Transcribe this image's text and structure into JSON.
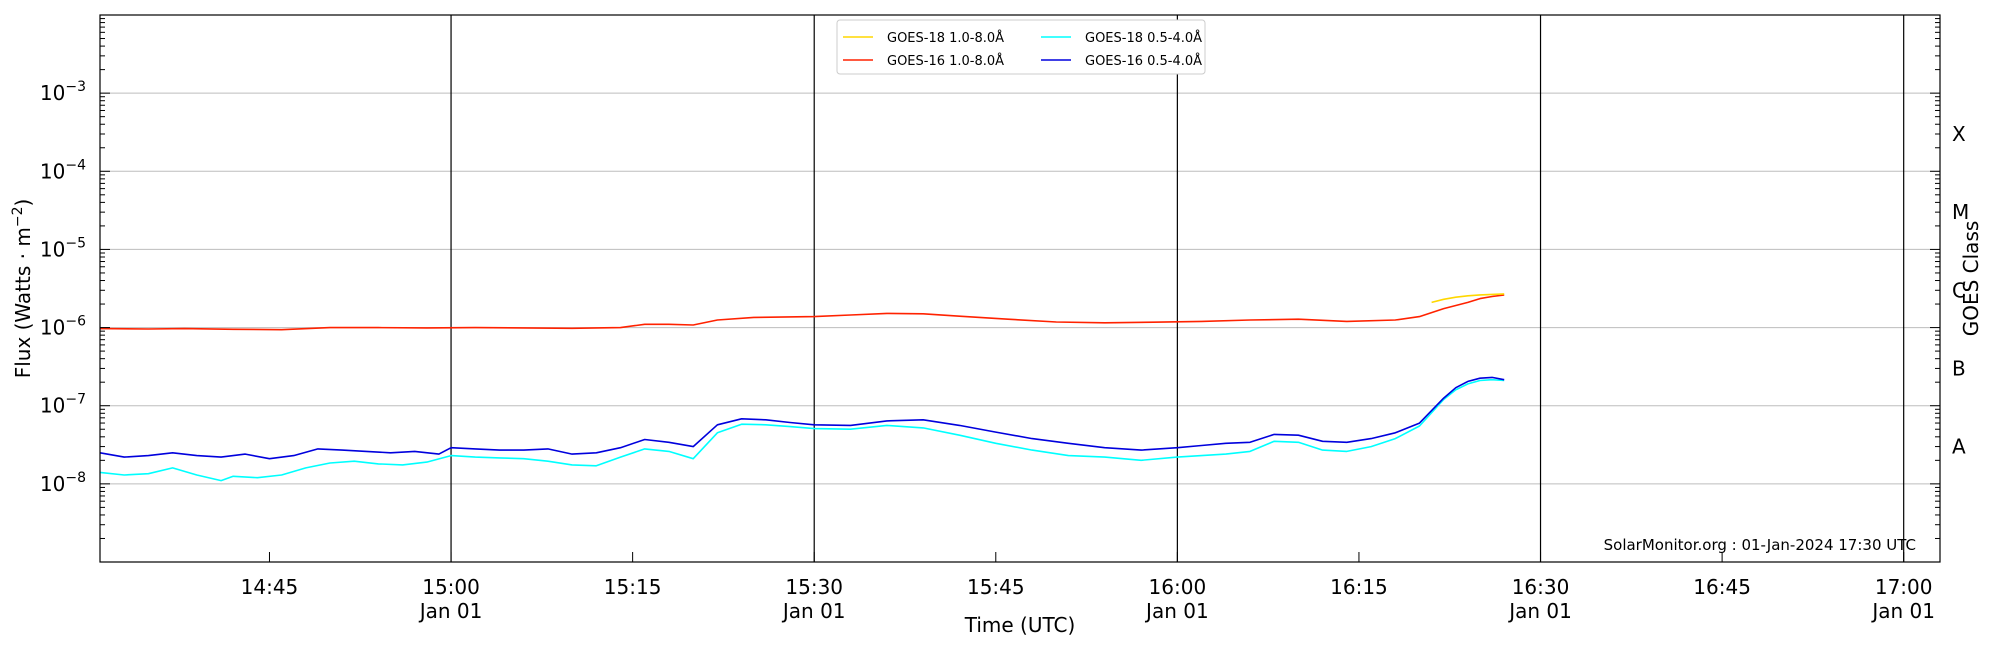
{
  "chart_data": {
    "type": "line",
    "title": "",
    "xlabel": "Time (UTC)",
    "ylabel": "Flux (Watts · m",
    "ylabel_exponent": "−2",
    "ylabel_close": ")",
    "y2label": "GOES Class",
    "y_scale": "log",
    "ylim": [
      1e-09,
      0.01
    ],
    "xlim": [
      "14:31",
      "17:03"
    ],
    "grid": "horizontal at decades",
    "legend_placement": "top-center",
    "y_ticks": [
      {
        "value": 1e-08,
        "base": "10",
        "exp": "−8"
      },
      {
        "value": 1e-07,
        "base": "10",
        "exp": "−7"
      },
      {
        "value": 1e-06,
        "base": "10",
        "exp": "−6"
      },
      {
        "value": 1e-05,
        "base": "10",
        "exp": "−5"
      },
      {
        "value": 0.0001,
        "base": "10",
        "exp": "−4"
      },
      {
        "value": 0.001,
        "base": "10",
        "exp": "−3"
      }
    ],
    "x_ticks": [
      {
        "time": "14:45",
        "label": "14:45",
        "sub": ""
      },
      {
        "time": "15:00",
        "label": "15:00",
        "sub": "Jan 01"
      },
      {
        "time": "15:15",
        "label": "15:15",
        "sub": ""
      },
      {
        "time": "15:30",
        "label": "15:30",
        "sub": "Jan 01"
      },
      {
        "time": "15:45",
        "label": "15:45",
        "sub": ""
      },
      {
        "time": "16:00",
        "label": "16:00",
        "sub": "Jan 01"
      },
      {
        "time": "16:15",
        "label": "16:15",
        "sub": ""
      },
      {
        "time": "16:30",
        "label": "16:30",
        "sub": "Jan 01"
      },
      {
        "time": "16:45",
        "label": "16:45",
        "sub": ""
      },
      {
        "time": "17:00",
        "label": "17:00",
        "sub": "Jan 01"
      }
    ],
    "vertical_lines": [
      "15:00",
      "15:30",
      "16:00",
      "16:30",
      "17:00"
    ],
    "goes_classes": [
      {
        "label": "A",
        "value": 3e-08
      },
      {
        "label": "B",
        "value": 3e-07
      },
      {
        "label": "C",
        "value": 3e-06
      },
      {
        "label": "M",
        "value": 3e-05
      },
      {
        "label": "X",
        "value": 0.0003
      }
    ],
    "legend": [
      {
        "name": "GOES-18 1.0-8.0Å",
        "color": "#ffd700"
      },
      {
        "name": "GOES-18 0.5-4.0Å",
        "color": "#00ffff"
      },
      {
        "name": "GOES-16 1.0-8.0Å",
        "color": "#ff2200"
      },
      {
        "name": "GOES-16 0.5-4.0Å",
        "color": "#0000dd"
      }
    ],
    "series": [
      {
        "name": "GOES-18 1.0-8.0Å",
        "color": "#ffd700",
        "x": [
          "16:21",
          "16:22",
          "16:23",
          "16:24",
          "16:25",
          "16:26",
          "16:27"
        ],
        "y": [
          2.1e-06,
          2.3e-06,
          2.45e-06,
          2.55e-06,
          2.62e-06,
          2.66e-06,
          2.7e-06
        ]
      },
      {
        "name": "GOES-16 1.0-8.0Å",
        "color": "#ff2200",
        "x": [
          "14:31",
          "14:35",
          "14:38",
          "14:42",
          "14:46",
          "14:50",
          "14:54",
          "14:58",
          "15:02",
          "15:06",
          "15:10",
          "15:14",
          "15:16",
          "15:18",
          "15:20",
          "15:22",
          "15:25",
          "15:30",
          "15:33",
          "15:36",
          "15:39",
          "15:42",
          "15:46",
          "15:50",
          "15:54",
          "15:58",
          "16:02",
          "16:06",
          "16:10",
          "16:14",
          "16:18",
          "16:20",
          "16:22",
          "16:24",
          "16:25",
          "16:26",
          "16:27"
        ],
        "y": [
          9.7e-07,
          9.6e-07,
          9.7e-07,
          9.5e-07,
          9.4e-07,
          1e-06,
          1e-06,
          9.9e-07,
          1e-06,
          9.9e-07,
          9.8e-07,
          1e-06,
          1.1e-06,
          1.1e-06,
          1.08e-06,
          1.25e-06,
          1.35e-06,
          1.38e-06,
          1.45e-06,
          1.52e-06,
          1.5e-06,
          1.4e-06,
          1.28e-06,
          1.18e-06,
          1.15e-06,
          1.17e-06,
          1.2e-06,
          1.25e-06,
          1.28e-06,
          1.2e-06,
          1.25e-06,
          1.38e-06,
          1.75e-06,
          2.1e-06,
          2.35e-06,
          2.5e-06,
          2.62e-06
        ]
      },
      {
        "name": "GOES-18 0.5-4.0Å",
        "color": "#00ffff",
        "x": [
          "14:31",
          "14:33",
          "14:35",
          "14:37",
          "14:39",
          "14:41",
          "14:42",
          "14:44",
          "14:46",
          "14:48",
          "14:50",
          "14:52",
          "14:54",
          "14:56",
          "14:58",
          "15:00",
          "15:02",
          "15:04",
          "15:06",
          "15:08",
          "15:10",
          "15:12",
          "15:14",
          "15:16",
          "15:18",
          "15:20",
          "15:22",
          "15:24",
          "15:26",
          "15:28",
          "15:30",
          "15:33",
          "15:36",
          "15:39",
          "15:42",
          "15:45",
          "15:48",
          "15:51",
          "15:54",
          "15:57",
          "16:00",
          "16:02",
          "16:04",
          "16:06",
          "16:08",
          "16:10",
          "16:12",
          "16:14",
          "16:16",
          "16:18",
          "16:20",
          "16:22",
          "16:23",
          "16:24",
          "16:25",
          "16:26",
          "16:27"
        ],
        "y": [
          1.4e-08,
          1.3e-08,
          1.35e-08,
          1.6e-08,
          1.3e-08,
          1.1e-08,
          1.25e-08,
          1.2e-08,
          1.3e-08,
          1.6e-08,
          1.85e-08,
          1.95e-08,
          1.8e-08,
          1.75e-08,
          1.9e-08,
          2.3e-08,
          2.2e-08,
          2.15e-08,
          2.1e-08,
          1.95e-08,
          1.75e-08,
          1.7e-08,
          2.2e-08,
          2.8e-08,
          2.6e-08,
          2.1e-08,
          4.5e-08,
          5.8e-08,
          5.7e-08,
          5.4e-08,
          5.1e-08,
          5e-08,
          5.6e-08,
          5.2e-08,
          4.2e-08,
          3.3e-08,
          2.7e-08,
          2.3e-08,
          2.2e-08,
          2e-08,
          2.2e-08,
          2.3e-08,
          2.4e-08,
          2.6e-08,
          3.5e-08,
          3.4e-08,
          2.7e-08,
          2.6e-08,
          3e-08,
          3.8e-08,
          5.5e-08,
          1.2e-07,
          1.6e-07,
          1.9e-07,
          2.1e-07,
          2.15e-07,
          2.1e-07
        ]
      },
      {
        "name": "GOES-16 0.5-4.0Å",
        "color": "#0000dd",
        "x": [
          "14:31",
          "14:33",
          "14:35",
          "14:37",
          "14:39",
          "14:41",
          "14:43",
          "14:45",
          "14:47",
          "14:49",
          "14:51",
          "14:53",
          "14:55",
          "14:57",
          "14:59",
          "15:00",
          "15:02",
          "15:04",
          "15:06",
          "15:08",
          "15:10",
          "15:12",
          "15:14",
          "15:16",
          "15:18",
          "15:20",
          "15:22",
          "15:24",
          "15:26",
          "15:28",
          "15:30",
          "15:33",
          "15:36",
          "15:39",
          "15:42",
          "15:45",
          "15:48",
          "15:51",
          "15:54",
          "15:57",
          "16:00",
          "16:02",
          "16:04",
          "16:06",
          "16:08",
          "16:10",
          "16:12",
          "16:14",
          "16:16",
          "16:18",
          "16:20",
          "16:22",
          "16:23",
          "16:24",
          "16:25",
          "16:26",
          "16:27"
        ],
        "y": [
          2.5e-08,
          2.2e-08,
          2.3e-08,
          2.5e-08,
          2.3e-08,
          2.2e-08,
          2.4e-08,
          2.1e-08,
          2.3e-08,
          2.8e-08,
          2.7e-08,
          2.6e-08,
          2.5e-08,
          2.6e-08,
          2.4e-08,
          2.9e-08,
          2.8e-08,
          2.7e-08,
          2.7e-08,
          2.8e-08,
          2.4e-08,
          2.5e-08,
          2.9e-08,
          3.7e-08,
          3.4e-08,
          3e-08,
          5.7e-08,
          6.8e-08,
          6.6e-08,
          6.1e-08,
          5.7e-08,
          5.6e-08,
          6.4e-08,
          6.6e-08,
          5.6e-08,
          4.6e-08,
          3.8e-08,
          3.3e-08,
          2.9e-08,
          2.7e-08,
          2.9e-08,
          3.1e-08,
          3.3e-08,
          3.4e-08,
          4.3e-08,
          4.2e-08,
          3.5e-08,
          3.4e-08,
          3.8e-08,
          4.5e-08,
          6e-08,
          1.25e-07,
          1.7e-07,
          2.05e-07,
          2.25e-07,
          2.3e-07,
          2.15e-07
        ]
      }
    ]
  },
  "credit": "SolarMonitor.org : 01-Jan-2024 17:30 UTC"
}
